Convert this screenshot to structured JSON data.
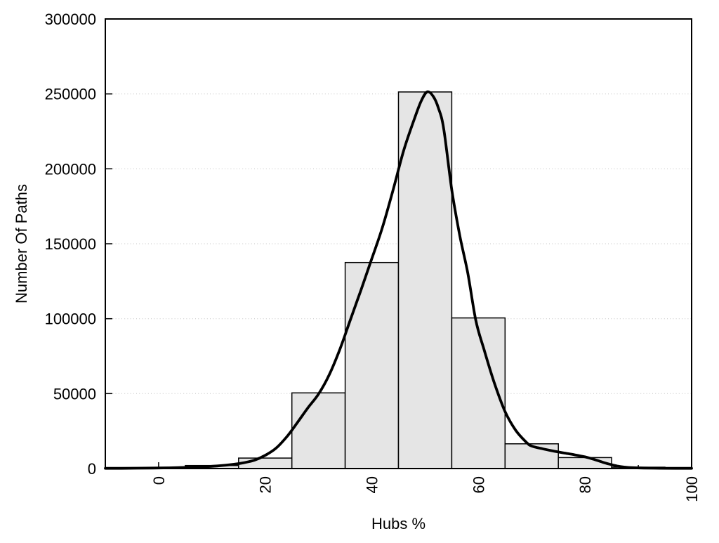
{
  "chart_data": {
    "type": "bar",
    "subtype": "histogram-with-smoothed-curve",
    "title": "",
    "xlabel": "Hubs %",
    "ylabel": "Number Of Paths",
    "xlim": [
      -10,
      100
    ],
    "ylim": [
      0,
      300000
    ],
    "grid": "horizontal dotted gridlines at labeled y ticks",
    "legend_position": "none",
    "x_major_ticks": [
      0,
      20,
      40,
      60,
      80,
      100
    ],
    "x_major_tick_labels": [
      "0",
      "20",
      "40",
      "60",
      "80",
      "100"
    ],
    "x_minor_ticks": [
      10,
      30,
      50,
      70,
      90
    ],
    "x_tick_label_rotation_deg": -90,
    "y_ticks": [
      0,
      50000,
      100000,
      150000,
      200000,
      250000,
      300000
    ],
    "y_tick_labels": [
      "0",
      "50000",
      "100000",
      "150000",
      "200000",
      "250000",
      "300000"
    ],
    "y_gridlines": [
      50000,
      100000,
      150000,
      200000,
      250000
    ],
    "bar_bin_width": 10,
    "bars": {
      "centers": [
        0,
        10,
        20,
        30,
        40,
        50,
        60,
        70,
        80,
        90
      ],
      "values": [
        600,
        2000,
        7000,
        50500,
        137500,
        251300,
        100500,
        16500,
        7300,
        900
      ]
    },
    "curve_series": {
      "name": "smoothed-fit-curve",
      "points": [
        [
          -10,
          120
        ],
        [
          -7,
          160
        ],
        [
          -4,
          220
        ],
        [
          -1,
          330
        ],
        [
          2,
          480
        ],
        [
          5,
          750
        ],
        [
          8,
          1150
        ],
        [
          11,
          1750
        ],
        [
          14,
          2800
        ],
        [
          16,
          3900
        ],
        [
          18,
          5600
        ],
        [
          20,
          8800
        ],
        [
          22,
          13500
        ],
        [
          24,
          21000
        ],
        [
          26,
          30500
        ],
        [
          28,
          40500
        ],
        [
          30,
          49700
        ],
        [
          32,
          62500
        ],
        [
          34,
          79500
        ],
        [
          36,
          99500
        ],
        [
          38,
          119500
        ],
        [
          40,
          140000
        ],
        [
          42,
          161000
        ],
        [
          44,
          186000
        ],
        [
          46,
          212500
        ],
        [
          48,
          233500
        ],
        [
          49.3,
          245500
        ],
        [
          50.4,
          251400
        ],
        [
          51.5,
          248500
        ],
        [
          52.5,
          240500
        ],
        [
          53.5,
          226500
        ],
        [
          55,
          186000
        ],
        [
          56.5,
          155500
        ],
        [
          58,
          130500
        ],
        [
          59.5,
          99000
        ],
        [
          61,
          80000
        ],
        [
          63,
          57000
        ],
        [
          65,
          38000
        ],
        [
          67,
          25500
        ],
        [
          69,
          17500
        ],
        [
          70,
          15000
        ],
        [
          72,
          13200
        ],
        [
          74,
          11700
        ],
        [
          76,
          10400
        ],
        [
          78,
          9200
        ],
        [
          80,
          7800
        ],
        [
          81.5,
          6300
        ],
        [
          83,
          4600
        ],
        [
          84.5,
          3000
        ],
        [
          86,
          1700
        ],
        [
          87.5,
          950
        ],
        [
          89,
          550
        ],
        [
          91,
          320
        ],
        [
          94,
          200
        ],
        [
          97,
          150
        ],
        [
          100,
          120
        ]
      ]
    },
    "colors": {
      "background": "#ffffff",
      "bar_fill": "#e5e5e5",
      "bar_stroke": "#000000",
      "curve": "#000000",
      "grid": "#c4c4c4",
      "axis": "#000000",
      "text": "#000000"
    }
  }
}
